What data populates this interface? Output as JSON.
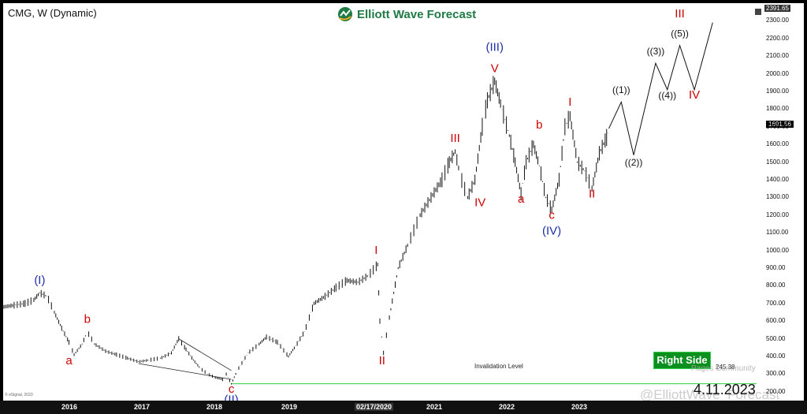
{
  "header": {
    "symbol": "CMG, W (Dynamic)",
    "logo_text": "Elliott Wave Forecast",
    "date_stamp": "4.11.2023",
    "watermark": "@ElliottWave_Forecast",
    "watermark_2": "Pages Community",
    "copyright": "© eSignal, 2023"
  },
  "price_readouts": {
    "top": "2391.65",
    "last": "1691.56"
  },
  "badge": {
    "label": "Right Side"
  },
  "invalidation": {
    "label": "Invalidation Level",
    "value": "245.38"
  },
  "colors": {
    "blue_wave": "#1f2fa8",
    "red_wave": "#d10000",
    "bull": "#0b8f1f"
  },
  "chart_data": {
    "type": "line",
    "title": "",
    "xlabel": "",
    "ylabel": "",
    "x_ticks": [
      "2016",
      "2017",
      "2018",
      "2019",
      "02/17/2020",
      "2021",
      "2022",
      "2023"
    ],
    "y_ticks": [
      200,
      300,
      400,
      500,
      600,
      700,
      800,
      900,
      1000,
      1100,
      1200,
      1300,
      1400,
      1500,
      1600,
      1700,
      1800,
      1900,
      2000,
      2100,
      2200,
      2300
    ],
    "ylim": [
      150,
      2400
    ],
    "xlim": [
      2015.0,
      2025.3
    ],
    "grid": false,
    "series": [
      {
        "points": [
          [
            2015.0,
            680
          ],
          [
            2015.15,
            690
          ],
          [
            2015.3,
            700
          ],
          [
            2015.42,
            720
          ],
          [
            2015.5,
            760
          ],
          [
            2015.6,
            740
          ],
          [
            2015.7,
            650
          ],
          [
            2015.8,
            560
          ],
          [
            2015.9,
            480
          ],
          [
            2015.97,
            410
          ],
          [
            2016.08,
            470
          ],
          [
            2016.15,
            540
          ],
          [
            2016.25,
            470
          ],
          [
            2016.4,
            430
          ],
          [
            2016.55,
            410
          ],
          [
            2016.7,
            390
          ],
          [
            2016.85,
            370
          ],
          [
            2017.0,
            380
          ],
          [
            2017.15,
            390
          ],
          [
            2017.3,
            420
          ],
          [
            2017.4,
            500
          ],
          [
            2017.5,
            440
          ],
          [
            2017.6,
            380
          ],
          [
            2017.7,
            330
          ],
          [
            2017.8,
            300
          ],
          [
            2017.9,
            280
          ],
          [
            2018.0,
            270
          ],
          [
            2018.05,
            300
          ],
          [
            2018.12,
            245
          ],
          [
            2018.2,
            320
          ],
          [
            2018.35,
            420
          ],
          [
            2018.5,
            470
          ],
          [
            2018.6,
            510
          ],
          [
            2018.75,
            480
          ],
          [
            2018.9,
            400
          ],
          [
            2019.0,
            460
          ],
          [
            2019.12,
            540
          ],
          [
            2019.25,
            700
          ],
          [
            2019.4,
            740
          ],
          [
            2019.55,
            790
          ],
          [
            2019.7,
            830
          ],
          [
            2019.85,
            820
          ],
          [
            2020.0,
            860
          ],
          [
            2020.12,
            920
          ],
          [
            2020.15,
            600
          ],
          [
            2020.2,
            420
          ],
          [
            2020.28,
            620
          ],
          [
            2020.4,
            900
          ],
          [
            2020.55,
            1050
          ],
          [
            2020.7,
            1200
          ],
          [
            2020.85,
            1300
          ],
          [
            2021.0,
            1400
          ],
          [
            2021.1,
            1500
          ],
          [
            2021.18,
            1560
          ],
          [
            2021.25,
            1420
          ],
          [
            2021.35,
            1300
          ],
          [
            2021.45,
            1400
          ],
          [
            2021.55,
            1700
          ],
          [
            2021.62,
            1850
          ],
          [
            2021.72,
            1958
          ],
          [
            2021.82,
            1800
          ],
          [
            2021.92,
            1650
          ],
          [
            2022.0,
            1500
          ],
          [
            2022.08,
            1320
          ],
          [
            2022.15,
            1500
          ],
          [
            2022.25,
            1600
          ],
          [
            2022.33,
            1480
          ],
          [
            2022.42,
            1300
          ],
          [
            2022.5,
            1230
          ],
          [
            2022.6,
            1400
          ],
          [
            2022.68,
            1700
          ],
          [
            2022.75,
            1760
          ],
          [
            2022.85,
            1500
          ],
          [
            2022.95,
            1450
          ],
          [
            2023.05,
            1350
          ],
          [
            2023.15,
            1550
          ],
          [
            2023.25,
            1640
          ],
          [
            2023.28,
            1690
          ]
        ]
      },
      {
        "name": "projection",
        "points": [
          [
            2023.28,
            1690
          ],
          [
            2023.45,
            1840
          ],
          [
            2023.62,
            1540
          ],
          [
            2023.92,
            2060
          ],
          [
            2024.08,
            1910
          ],
          [
            2024.25,
            2160
          ],
          [
            2024.45,
            1910
          ],
          [
            2024.7,
            2290
          ]
        ]
      }
    ],
    "wave_labels": [
      {
        "text": "(I)",
        "x": 2015.5,
        "y": 810,
        "color": "blue"
      },
      {
        "text": "a",
        "x": 2015.9,
        "y": 355,
        "color": "red"
      },
      {
        "text": "b",
        "x": 2016.15,
        "y": 590,
        "color": "red"
      },
      {
        "text": "c",
        "x": 2018.12,
        "y": 195,
        "color": "red"
      },
      {
        "text": "(II)",
        "x": 2018.12,
        "y": 135,
        "color": "blue"
      },
      {
        "text": "I",
        "x": 2020.1,
        "y": 980,
        "color": "red"
      },
      {
        "text": "II",
        "x": 2020.18,
        "y": 355,
        "color": "red"
      },
      {
        "text": "III",
        "x": 2021.18,
        "y": 1615,
        "color": "red"
      },
      {
        "text": "IV",
        "x": 2021.52,
        "y": 1250,
        "color": "red"
      },
      {
        "text": "V",
        "x": 2021.72,
        "y": 2010,
        "color": "red"
      },
      {
        "text": "(III)",
        "x": 2021.72,
        "y": 2130,
        "color": "blue"
      },
      {
        "text": "a",
        "x": 2022.08,
        "y": 1270,
        "color": "red"
      },
      {
        "text": "b",
        "x": 2022.33,
        "y": 1690,
        "color": "red"
      },
      {
        "text": "c",
        "x": 2022.5,
        "y": 1180,
        "color": "red"
      },
      {
        "text": "(IV)",
        "x": 2022.5,
        "y": 1090,
        "color": "blue"
      },
      {
        "text": "I",
        "x": 2022.75,
        "y": 1820,
        "color": "red"
      },
      {
        "text": "II",
        "x": 2023.05,
        "y": 1300,
        "color": "red"
      },
      {
        "text": "((1))",
        "x": 2023.45,
        "y": 1890,
        "color": "black"
      },
      {
        "text": "((2))",
        "x": 2023.62,
        "y": 1480,
        "color": "black"
      },
      {
        "text": "((3))",
        "x": 2023.92,
        "y": 2110,
        "color": "black"
      },
      {
        "text": "((4))",
        "x": 2024.08,
        "y": 1860,
        "color": "black"
      },
      {
        "text": "((5))",
        "x": 2024.25,
        "y": 2210,
        "color": "black"
      },
      {
        "text": "III",
        "x": 2024.25,
        "y": 2320,
        "color": "red"
      },
      {
        "text": "IV",
        "x": 2024.45,
        "y": 1860,
        "color": "red"
      }
    ],
    "invalidation_level": 245.38
  }
}
